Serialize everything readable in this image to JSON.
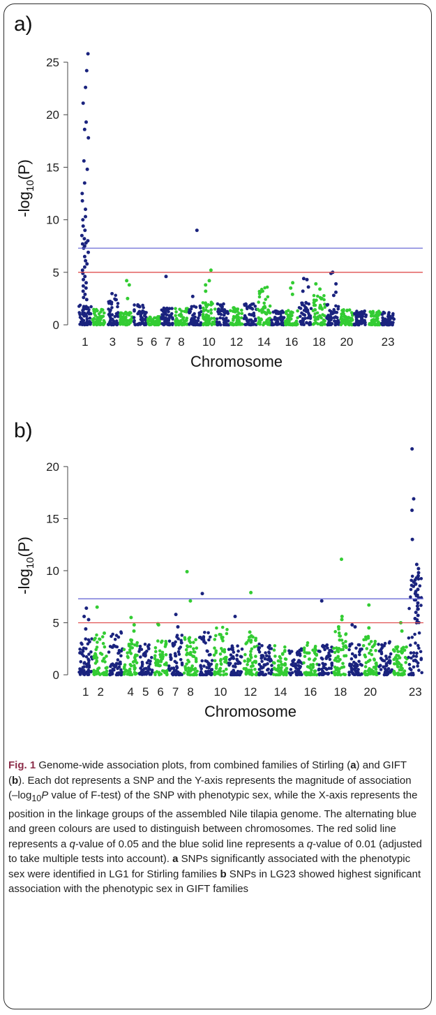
{
  "panel_a_label": "a)",
  "panel_b_label": "b)",
  "caption": {
    "fig_label": "Fig. 1",
    "t1": " Genome-wide association plots, from combined families of Stirling (",
    "b1": "a",
    "t2": ") and GIFT (",
    "b2": "b",
    "t3": "). Each dot represents a SNP and the Y-axis represents the magnitude of association (–log",
    "sub10": "10",
    "itP": "P",
    "t4": " value of F-test) of the SNP with phenotypic sex, while the X-axis represents the position in the linkage groups of the assembled Nile tilapia genome. The alternating blue and green colours are used to distinguish between chromosomes. The red solid line represents a ",
    "q1": "q",
    "t5": "-value of 0.05 and the blue solid line represents a ",
    "q2": "q",
    "t6": "-value of 0.01 (adjusted to take multiple tests into account). ",
    "b3": "a",
    "t7": " SNPs significantly associated with the phenotypic sex were identified in LG1 for Stirling families ",
    "b4": "b",
    "t8": " SNPs in LG23 showed highest significant association with the phenotypic sex in GIFT families"
  },
  "colors": {
    "odd_chromosome": "#1a237e",
    "even_chromosome": "#33cc33",
    "q001_line": "#6b6bd6",
    "q005_line": "#e05050",
    "axis": "#444444"
  },
  "chart_data": [
    {
      "type": "scatter",
      "panel": "a",
      "xlabel": "Chromosome",
      "ylabel_main": "-log",
      "ylabel_sub": "10",
      "ylabel_paren": "(P)",
      "ylim": [
        0,
        26
      ],
      "yticks": [
        0,
        5,
        10,
        15,
        20,
        25
      ],
      "chromosomes": 23,
      "xtick_labels": [
        "1",
        "3",
        "5",
        "6",
        "7",
        "8",
        "10",
        "12",
        "14",
        "16",
        "18",
        "20",
        "23"
      ],
      "xtick_positions": [
        1,
        3,
        5,
        6,
        7,
        8,
        10,
        12,
        14,
        16,
        18,
        20,
        23
      ],
      "threshold_q001": 7.3,
      "threshold_q005": 5.0,
      "baseline_max": [
        1.9,
        1.5,
        3.0,
        1.2,
        2.0,
        0.8,
        1.6,
        1.6,
        1.9,
        2.2,
        2.0,
        1.7,
        2.0,
        3.7,
        1.4,
        1.4,
        2.2,
        2.8,
        2.0,
        1.5,
        1.4,
        1.3,
        1.2
      ],
      "peaks": [
        {
          "chr": 1,
          "values": [
            25.8,
            24.2,
            22.6,
            21.1,
            19.3,
            18.6,
            17.8,
            15.6,
            14.8,
            13.5,
            12.5,
            11.8,
            11.0,
            10.3,
            10.0,
            9.4,
            9.0,
            8.5,
            8.2,
            8.0,
            7.8,
            7.7,
            7.5,
            7.3,
            6.9,
            6.5,
            6.1,
            5.8,
            5.5,
            5.2,
            4.9,
            4.6,
            4.3,
            4.0,
            3.7,
            3.5,
            3.2,
            2.9,
            2.6,
            2.4
          ]
        },
        {
          "chr": 4,
          "values": [
            4.2,
            3.8,
            2.5
          ]
        },
        {
          "chr": 7,
          "values": [
            4.6
          ]
        },
        {
          "chr": 9,
          "values": [
            9.0,
            2.7
          ]
        },
        {
          "chr": 10,
          "values": [
            5.2,
            4.2,
            3.8,
            3.2
          ]
        },
        {
          "chr": 16,
          "values": [
            4.0,
            3.5,
            2.9
          ]
        },
        {
          "chr": 17,
          "values": [
            4.4,
            4.3,
            3.6,
            3.2
          ]
        },
        {
          "chr": 18,
          "values": [
            3.9,
            3.4
          ]
        },
        {
          "chr": 19,
          "values": [
            5.0,
            4.9,
            3.9,
            3.1,
            2.8
          ]
        }
      ]
    },
    {
      "type": "scatter",
      "panel": "b",
      "xlabel": "Chromosome",
      "ylabel_main": "-log",
      "ylabel_sub": "10",
      "ylabel_paren": "(P)",
      "ylim": [
        0,
        21
      ],
      "yticks": [
        0,
        5,
        10,
        15,
        20
      ],
      "chromosomes": 23,
      "xtick_labels": [
        "1",
        "2",
        "4",
        "5",
        "6",
        "7",
        "8",
        "10",
        "12",
        "14",
        "16",
        "18",
        "20",
        "23"
      ],
      "xtick_positions": [
        1,
        2,
        4,
        5,
        6,
        7,
        8,
        10,
        12,
        14,
        16,
        18,
        20,
        23
      ],
      "threshold_q001": 7.3,
      "threshold_q005": 5.0,
      "baseline_max": [
        3.5,
        3.9,
        4.3,
        3.4,
        3.0,
        3.3,
        3.8,
        3.6,
        4.2,
        4.6,
        2.9,
        3.9,
        3.0,
        2.8,
        2.6,
        3.1,
        2.9,
        4.5,
        3.0,
        3.7,
        3.2,
        2.7,
        9.5
      ],
      "peaks": [
        {
          "chr": 1,
          "values": [
            6.4,
            5.6,
            5.3,
            4.4
          ]
        },
        {
          "chr": 2,
          "values": [
            6.5,
            4.0
          ]
        },
        {
          "chr": 4,
          "values": [
            5.5,
            4.8,
            4.2
          ]
        },
        {
          "chr": 6,
          "values": [
            4.9,
            4.8
          ]
        },
        {
          "chr": 7,
          "values": [
            5.8,
            4.6
          ]
        },
        {
          "chr": 8,
          "values": [
            9.9,
            7.1
          ]
        },
        {
          "chr": 9,
          "values": [
            7.8
          ]
        },
        {
          "chr": 11,
          "values": [
            5.6
          ]
        },
        {
          "chr": 12,
          "values": [
            7.9,
            4.1
          ]
        },
        {
          "chr": 17,
          "values": [
            7.1
          ]
        },
        {
          "chr": 18,
          "values": [
            11.1,
            5.6,
            5.3,
            4.6
          ]
        },
        {
          "chr": 19,
          "values": [
            4.8,
            4.6
          ]
        },
        {
          "chr": 20,
          "values": [
            6.7,
            4.5
          ]
        },
        {
          "chr": 22,
          "values": [
            5.0,
            4.2
          ]
        },
        {
          "chr": 23,
          "values": [
            21.7,
            16.9,
            15.8,
            13.0,
            10.6,
            10.2,
            9.8,
            9.5,
            9.3,
            9.1,
            8.9,
            8.7,
            8.5,
            8.2,
            8.0,
            7.8,
            7.6,
            7.4,
            7.2,
            6.9,
            6.6,
            6.3,
            6.0,
            5.7,
            5.4,
            5.1
          ]
        }
      ]
    }
  ]
}
